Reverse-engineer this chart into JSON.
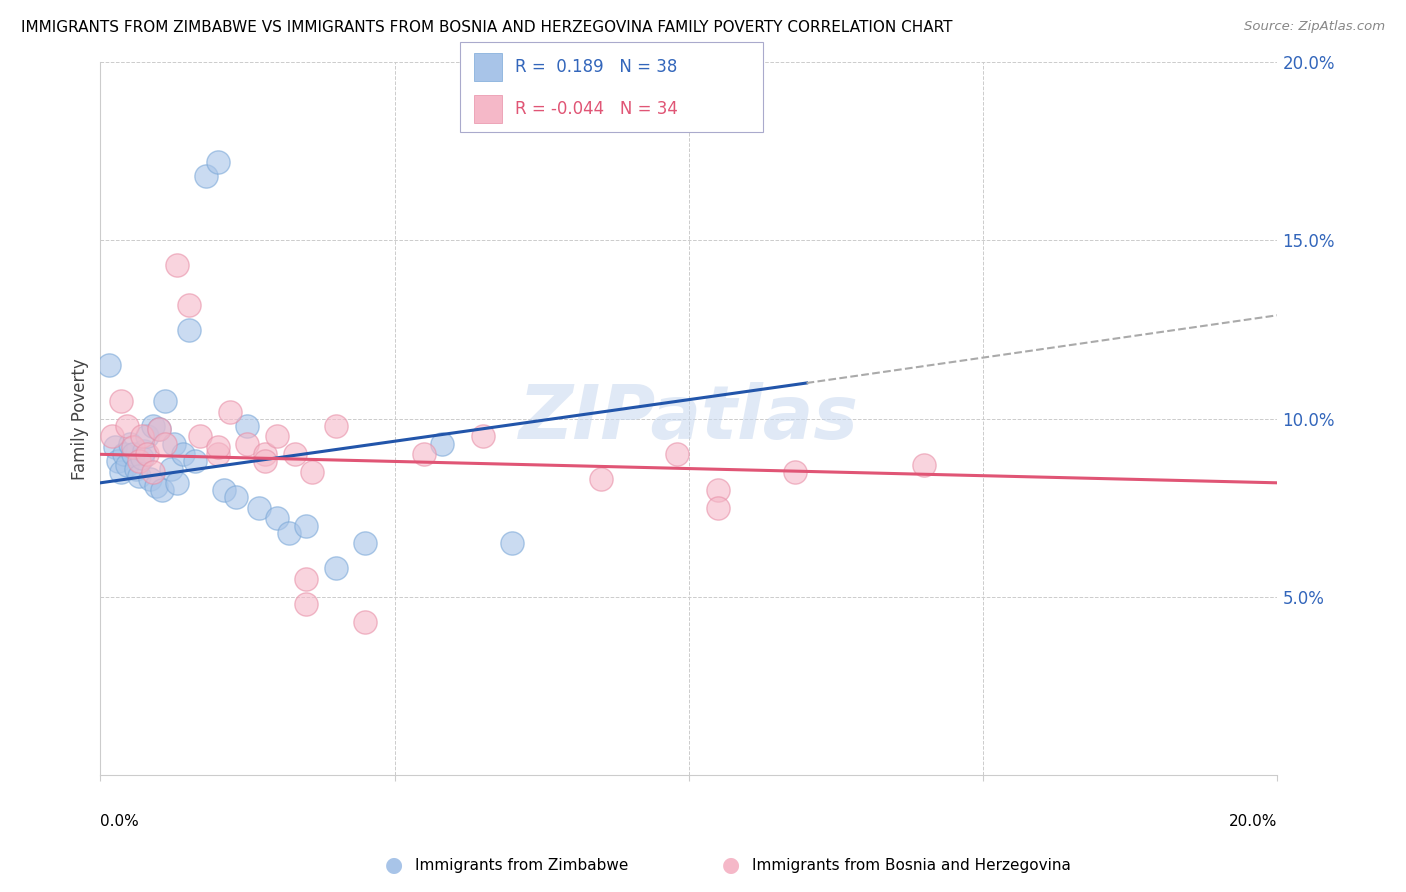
{
  "title": "IMMIGRANTS FROM ZIMBABWE VS IMMIGRANTS FROM BOSNIA AND HERZEGOVINA FAMILY POVERTY CORRELATION CHART",
  "source": "Source: ZipAtlas.com",
  "ylabel": "Family Poverty",
  "xlim": [
    0.0,
    20.0
  ],
  "ylim": [
    0.0,
    20.0
  ],
  "yticks": [
    0.0,
    5.0,
    10.0,
    15.0,
    20.0
  ],
  "blue_color": "#a8c4e8",
  "pink_color": "#f5b8c8",
  "line_blue": "#2255aa",
  "line_pink": "#e05575",
  "line_dashed_color": "#aaaaaa",
  "watermark": "ZIPatlas",
  "zimbabwe_x": [
    0.15,
    0.25,
    0.3,
    0.35,
    0.4,
    0.45,
    0.5,
    0.55,
    0.6,
    0.65,
    0.7,
    0.75,
    0.8,
    0.85,
    0.9,
    0.95,
    1.0,
    1.05,
    1.1,
    1.2,
    1.25,
    1.3,
    1.4,
    1.5,
    1.6,
    1.8,
    2.0,
    2.1,
    2.3,
    2.5,
    2.7,
    3.0,
    3.2,
    3.5,
    4.0,
    4.5,
    5.8,
    7.0
  ],
  "zimbabwe_y": [
    11.5,
    9.2,
    8.8,
    8.5,
    9.0,
    8.7,
    9.3,
    9.0,
    8.6,
    8.4,
    8.9,
    9.1,
    9.5,
    8.3,
    9.8,
    8.1,
    9.7,
    8.0,
    10.5,
    8.6,
    9.3,
    8.2,
    9.0,
    12.5,
    8.8,
    16.8,
    17.2,
    8.0,
    7.8,
    9.8,
    7.5,
    7.2,
    6.8,
    7.0,
    5.8,
    6.5,
    9.3,
    6.5
  ],
  "bosnia_x": [
    0.2,
    0.35,
    0.45,
    0.55,
    0.65,
    0.7,
    0.8,
    0.9,
    1.0,
    1.1,
    1.3,
    1.5,
    1.7,
    2.0,
    2.2,
    2.5,
    2.8,
    3.0,
    3.3,
    3.6,
    4.0,
    5.5,
    6.5,
    8.5,
    9.8,
    10.5,
    11.8,
    14.0,
    2.0,
    2.8,
    3.5,
    4.5,
    3.5,
    10.5
  ],
  "bosnia_y": [
    9.5,
    10.5,
    9.8,
    9.2,
    8.8,
    9.5,
    9.0,
    8.5,
    9.7,
    9.3,
    14.3,
    13.2,
    9.5,
    9.0,
    10.2,
    9.3,
    9.0,
    9.5,
    9.0,
    8.5,
    9.8,
    9.0,
    9.5,
    8.3,
    9.0,
    8.0,
    8.5,
    8.7,
    9.2,
    8.8,
    4.8,
    4.3,
    5.5,
    7.5
  ],
  "blue_line_x0": 0.0,
  "blue_line_y0": 8.2,
  "blue_line_x1": 12.0,
  "blue_line_y1": 11.0,
  "blue_dash_x0": 12.0,
  "blue_dash_y0": 11.0,
  "blue_dash_x1": 20.0,
  "blue_dash_y1": 12.9,
  "pink_line_x0": 0.0,
  "pink_line_y0": 9.0,
  "pink_line_x1": 20.0,
  "pink_line_y1": 8.2
}
